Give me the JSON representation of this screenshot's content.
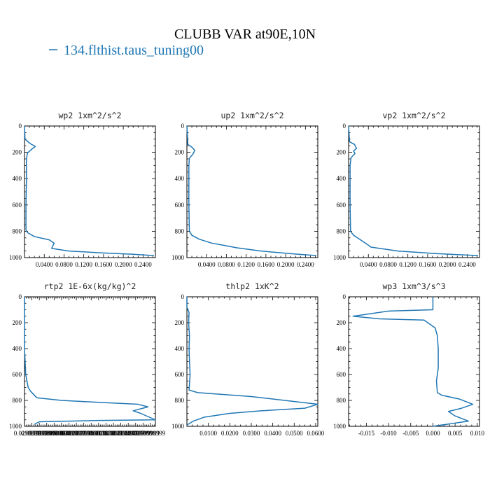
{
  "figure": {
    "title": "CLUBB VAR at90E,10N",
    "legend_label": "134.flthist.taus_tuning00",
    "series_color": "#1f77b4"
  },
  "chart_data": [
    {
      "type": "line",
      "title": "wp2   1xm^2/s^2",
      "xlabel": "",
      "ylabel": "",
      "xlim": [
        0,
        0.265
      ],
      "ylim": [
        1000,
        0
      ],
      "xticks": [
        0.04,
        0.08,
        0.12,
        0.16,
        0.2,
        0.24
      ],
      "xtick_labels": [
        "0.0400",
        "0.0800",
        "0.1200",
        "0.1600",
        "0.2000",
        "0.2400"
      ],
      "yticks": [
        0,
        200,
        400,
        600,
        800,
        1000
      ],
      "ytick_labels": [
        "0",
        "200",
        "400",
        "600",
        "800",
        "1000"
      ],
      "series": [
        {
          "x": [
            0.0,
            0.001,
            0.012,
            0.022,
            0.015,
            0.006,
            0.004,
            0.004,
            0.003,
            0.003,
            0.006,
            0.02,
            0.05,
            0.06,
            0.055,
            0.09,
            0.16,
            0.22,
            0.262
          ],
          "y": [
            0,
            100,
            135,
            155,
            175,
            205,
            250,
            400,
            600,
            790,
            810,
            840,
            865,
            890,
            930,
            950,
            965,
            975,
            985
          ]
        }
      ]
    },
    {
      "type": "line",
      "title": "up2   1xm^2/s^2",
      "xlabel": "",
      "ylabel": "",
      "xlim": [
        0,
        0.265
      ],
      "ylim": [
        1000,
        0
      ],
      "xticks": [
        0.04,
        0.08,
        0.12,
        0.16,
        0.2,
        0.24
      ],
      "xtick_labels": [
        "0.0400",
        "0.0800",
        "0.1200",
        "0.1600",
        "0.2000",
        "0.2400"
      ],
      "yticks": [
        0,
        200,
        400,
        600,
        800,
        1000
      ],
      "ytick_labels": [
        "0",
        "200",
        "400",
        "600",
        "800",
        "1000"
      ],
      "series": [
        {
          "x": [
            0.0,
            0.002,
            0.01,
            0.016,
            0.012,
            0.005,
            0.004,
            0.004,
            0.005,
            0.01,
            0.025,
            0.05,
            0.08,
            0.1,
            0.15,
            0.21,
            0.262
          ],
          "y": [
            0,
            140,
            160,
            185,
            215,
            245,
            300,
            600,
            800,
            830,
            860,
            890,
            910,
            925,
            950,
            970,
            985
          ]
        }
      ]
    },
    {
      "type": "line",
      "title": "vp2   1xm^2/s^2",
      "xlabel": "",
      "ylabel": "",
      "xlim": [
        0,
        0.265
      ],
      "ylim": [
        1000,
        0
      ],
      "xticks": [
        0.04,
        0.08,
        0.12,
        0.16,
        0.2,
        0.24
      ],
      "xtick_labels": [
        "0.0400",
        "0.0800",
        "0.1200",
        "0.1600",
        "0.2000",
        "0.2400"
      ],
      "yticks": [
        0,
        200,
        400,
        600,
        800,
        1000
      ],
      "ytick_labels": [
        "0",
        "200",
        "400",
        "600",
        "800",
        "1000"
      ],
      "series": [
        {
          "x": [
            0.0,
            0.002,
            0.012,
            0.016,
            0.01,
            0.013,
            0.005,
            0.003,
            0.003,
            0.004,
            0.01,
            0.022,
            0.038,
            0.045,
            0.1,
            0.18,
            0.262
          ],
          "y": [
            0,
            120,
            140,
            170,
            190,
            210,
            240,
            300,
            600,
            800,
            830,
            860,
            900,
            920,
            950,
            970,
            985
          ]
        }
      ]
    },
    {
      "type": "line",
      "title": "rtp2   1E-6x(kg/kg)^2",
      "xlabel": "",
      "ylabel": "",
      "xlim": [
        0,
        0.53
      ],
      "ylim": [
        1000,
        0
      ],
      "xticks": [
        0.03,
        0.06,
        0.09,
        0.12,
        0.15,
        0.18,
        0.21,
        0.24,
        0.27,
        0.3,
        0.33,
        0.36,
        0.39,
        0.42,
        0.45,
        0.48,
        0.51
      ],
      "xtick_labels": [
        "0.0299999993",
        "0.0599999987",
        "0.0900000036",
        "0.119999997",
        "0.150000006",
        "0.180000007",
        "0.209999993",
        "0.239999995",
        "0.270000011",
        "0.300000012",
        "0.330000013",
        "0.360000014",
        "0.389999986",
        "0.419999987",
        "0.449999988",
        "0.479999989",
        "0.50999999"
      ],
      "yticks": [
        0,
        200,
        400,
        600,
        800,
        1000
      ],
      "ytick_labels": [
        "0",
        "200",
        "400",
        "600",
        "800",
        "1000"
      ],
      "series": [
        {
          "x": [
            0.0,
            0.0,
            0.005,
            0.015,
            0.025,
            0.05,
            0.15,
            0.3,
            0.46,
            0.5,
            0.44,
            0.47,
            0.53,
            0.3,
            0.06,
            0.04
          ],
          "y": [
            0,
            400,
            600,
            700,
            730,
            780,
            800,
            815,
            830,
            850,
            880,
            900,
            950,
            955,
            965,
            985
          ]
        }
      ]
    },
    {
      "type": "line",
      "title": "thlp2   1xK^2",
      "xlabel": "",
      "ylabel": "",
      "xlim": [
        0,
        0.061
      ],
      "ylim": [
        1000,
        0
      ],
      "xticks": [
        0.01,
        0.02,
        0.03,
        0.04,
        0.05,
        0.06
      ],
      "xtick_labels": [
        "0.0100",
        "0.0200",
        "0.0300",
        "0.0400",
        "0.0500",
        "0.0600"
      ],
      "yticks": [
        0,
        200,
        400,
        600,
        800,
        1000
      ],
      "ytick_labels": [
        "0",
        "200",
        "400",
        "600",
        "800",
        "1000"
      ],
      "series": [
        {
          "x": [
            0.0,
            0.0,
            0.0005,
            0.001,
            0.0008,
            0.0012,
            0.001,
            0.0012,
            0.0015,
            0.001,
            0.005,
            0.03,
            0.061,
            0.055,
            0.035,
            0.02,
            0.008,
            0.003,
            0.0
          ],
          "y": [
            0,
            80,
            100,
            120,
            200,
            300,
            400,
            500,
            600,
            720,
            740,
            770,
            830,
            860,
            880,
            900,
            930,
            960,
            990
          ]
        }
      ]
    },
    {
      "type": "line",
      "title": "wp3   1xm^3/s^3",
      "xlabel": "",
      "ylabel": "",
      "xlim": [
        -0.019,
        0.0105
      ],
      "ylim": [
        1000,
        0
      ],
      "xticks": [
        -0.015,
        -0.01,
        -0.005,
        0.0,
        0.005,
        0.01
      ],
      "xtick_labels": [
        "-0.015",
        "-0.010",
        "-0.005",
        "0.000",
        "0.005",
        "0.010"
      ],
      "yticks": [
        0,
        200,
        400,
        600,
        800,
        1000
      ],
      "ytick_labels": [
        "0",
        "200",
        "400",
        "600",
        "800",
        "1000"
      ],
      "series": [
        {
          "x": [
            0.0,
            0.0,
            -0.01,
            -0.018,
            -0.012,
            -0.002,
            0.0005,
            0.001,
            0.0012,
            0.0012,
            0.0008,
            0.001,
            0.002,
            0.006,
            0.009,
            0.0065,
            0.0035,
            0.005,
            0.008,
            0.0
          ],
          "y": [
            0,
            100,
            110,
            150,
            170,
            180,
            240,
            300,
            400,
            550,
            650,
            740,
            760,
            790,
            830,
            860,
            885,
            920,
            960,
            1000
          ]
        }
      ]
    }
  ]
}
